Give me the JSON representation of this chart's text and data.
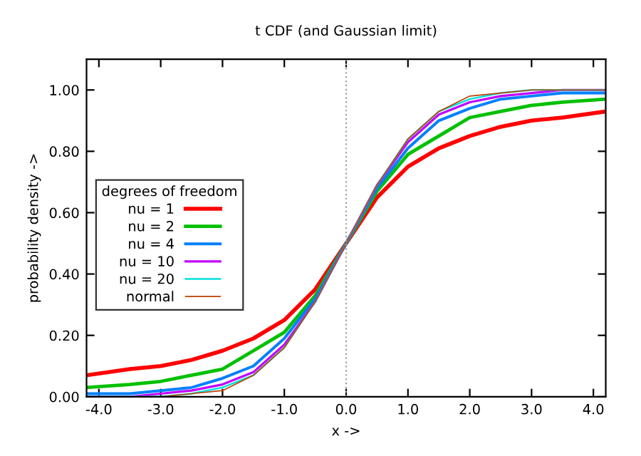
{
  "chart_data": {
    "type": "line",
    "title": "t CDF (and Gaussian limit)",
    "xlabel": "x ->",
    "ylabel": "probability density ->",
    "legend_title": "degrees of freedom",
    "legend": "left",
    "x": [
      -4.2,
      -3.5,
      -3,
      -2.5,
      -2,
      -1.5,
      -1,
      -0.5,
      0,
      0.5,
      1,
      1.5,
      2,
      2.5,
      3,
      3.5,
      4.2
    ],
    "series": [
      {
        "name": "nu = 1",
        "color": "#ff0000",
        "values": [
          0.07,
          0.09,
          0.1,
          0.12,
          0.15,
          0.19,
          0.25,
          0.35,
          0.5,
          0.65,
          0.75,
          0.81,
          0.85,
          0.88,
          0.9,
          0.91,
          0.93
        ]
      },
      {
        "name": "nu = 2",
        "color": "#00c000",
        "values": [
          0.03,
          0.04,
          0.05,
          0.07,
          0.09,
          0.15,
          0.21,
          0.33,
          0.5,
          0.67,
          0.79,
          0.85,
          0.91,
          0.93,
          0.95,
          0.96,
          0.97
        ]
      },
      {
        "name": "nu = 4",
        "color": "#0080ff",
        "values": [
          0.01,
          0.01,
          0.02,
          0.03,
          0.06,
          0.1,
          0.19,
          0.32,
          0.5,
          0.68,
          0.81,
          0.9,
          0.94,
          0.97,
          0.98,
          0.99,
          0.99
        ]
      },
      {
        "name": "nu = 10",
        "color": "#c000ff",
        "values": [
          0.0,
          0.0,
          0.01,
          0.02,
          0.04,
          0.08,
          0.17,
          0.31,
          0.5,
          0.69,
          0.83,
          0.92,
          0.96,
          0.98,
          0.99,
          1.0,
          1.0
        ]
      },
      {
        "name": "nu = 20",
        "color": "#00e0e0",
        "values": [
          0.0,
          0.0,
          0.0,
          0.01,
          0.03,
          0.07,
          0.16,
          0.31,
          0.5,
          0.69,
          0.84,
          0.93,
          0.97,
          0.99,
          1.0,
          1.0,
          1.0
        ]
      },
      {
        "name": "normal",
        "color": "#c04000",
        "values": [
          0.0,
          0.0,
          0.0,
          0.01,
          0.02,
          0.07,
          0.16,
          0.31,
          0.5,
          0.69,
          0.84,
          0.93,
          0.98,
          0.99,
          1.0,
          1.0,
          1.0
        ]
      }
    ],
    "xlim": [
      -4.2,
      4.2
    ],
    "xticks": [
      {
        "value": -4,
        "label": "-4.0"
      },
      {
        "value": -3,
        "label": "-3.0"
      },
      {
        "value": -2,
        "label": "-2.0"
      },
      {
        "value": -1,
        "label": "-1.0"
      },
      {
        "value": 0,
        "label": "0.0"
      },
      {
        "value": 1,
        "label": "1.0"
      },
      {
        "value": 2,
        "label": "2.0"
      },
      {
        "value": 3,
        "label": "3.0"
      },
      {
        "value": 4,
        "label": "4.0"
      }
    ],
    "ylim": [
      0,
      1.1
    ],
    "yticks": [
      {
        "value": 0,
        "label": "0.00"
      },
      {
        "value": 0.2,
        "label": "0.20"
      },
      {
        "value": 0.4,
        "label": "0.40"
      },
      {
        "value": 0.6,
        "label": "0.60"
      },
      {
        "value": 0.8,
        "label": "0.80"
      },
      {
        "value": 1.0,
        "label": "1.00"
      }
    ],
    "ref_lines": [
      {
        "axis": "x",
        "value": 0,
        "color": "#a0a0a0",
        "line_style": "dotted"
      }
    ],
    "grid": false
  }
}
